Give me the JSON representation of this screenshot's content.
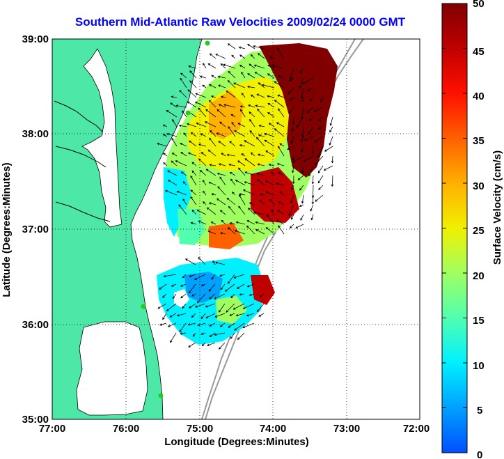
{
  "title": "Southern Mid-Atlantic Raw Velocities 2009/02/24 0000 GMT",
  "xlabel": "Longitude (Degrees:Minutes)",
  "ylabel": "Latitude (Degrees:Minutes)",
  "x_ticks": [
    "77:00",
    "76:00",
    "75:00",
    "74:00",
    "73:00",
    "72:00"
  ],
  "y_ticks": [
    "39:00",
    "38:00",
    "37:00",
    "36:00",
    "35:00"
  ],
  "colorbar": {
    "label": "Surface Velocity (cm/s)",
    "ticks": [
      "50",
      "45",
      "40",
      "35",
      "30",
      "25",
      "20",
      "15",
      "10",
      "5",
      "0"
    ],
    "range": [
      0,
      50
    ],
    "colors": [
      "#0050ff",
      "#00a0ff",
      "#00f0ff",
      "#50ffb0",
      "#a0ff60",
      "#f0f000",
      "#ffb000",
      "#ff6000",
      "#ff1000",
      "#c00000",
      "#800000"
    ]
  },
  "map": {
    "lon_range": [
      -77,
      -72
    ],
    "lat_range": [
      35,
      39
    ],
    "land_color": "#4de8a8",
    "ocean_color": "#ffffff",
    "grid": "dotted"
  }
}
